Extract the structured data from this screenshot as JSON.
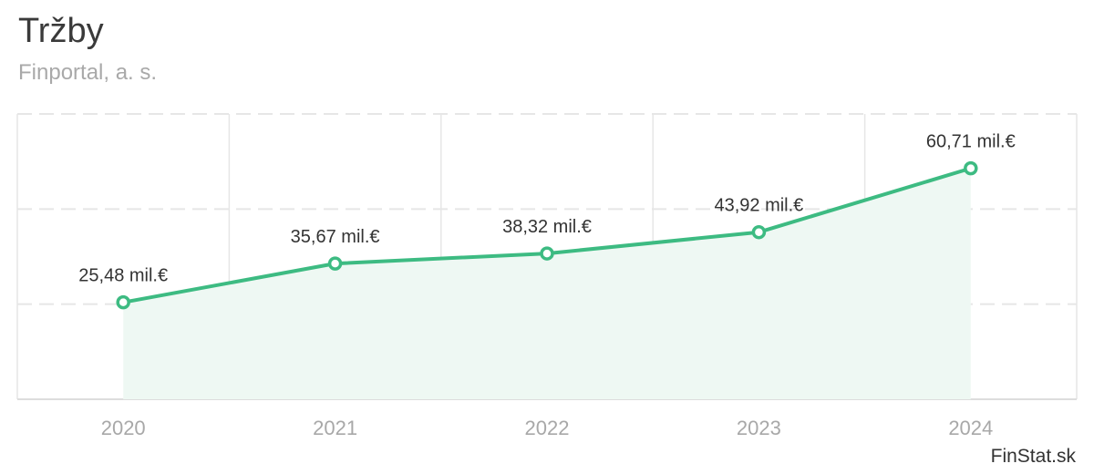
{
  "title": "Tržby",
  "subtitle": "Finportal, a. s.",
  "credit": "FinStat.sk",
  "colors": {
    "line": "#3dbb82",
    "area": "#eef8f3",
    "grid": "#e6e6e6",
    "tick_text": "#a8a8a8",
    "label_text": "#333333"
  },
  "chart_data": {
    "type": "area",
    "title": "Tržby",
    "subtitle": "Finportal, a. s.",
    "categories": [
      "2020",
      "2021",
      "2022",
      "2023",
      "2024"
    ],
    "values": [
      25.48,
      35.67,
      38.32,
      43.92,
      60.71
    ],
    "data_labels": [
      "25,48 mil.€",
      "35,67 mil.€",
      "38,32 mil.€",
      "43,92 mil.€",
      "60,71 mil.€"
    ],
    "ylim": [
      0,
      75
    ],
    "y_gridlines": [
      25,
      50,
      75
    ],
    "y_axis_labels_shown": false,
    "grid": true,
    "legend": "none"
  }
}
